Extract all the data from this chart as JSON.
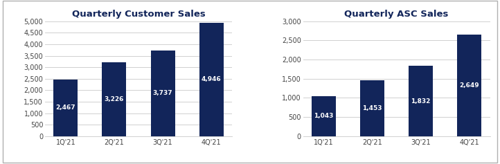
{
  "chart1_title": "Quarterly Customer Sales",
  "chart2_title": "Quarterly ASC Sales",
  "categories": [
    "1Q'21",
    "2Q'21",
    "3Q'21",
    "4Q'21"
  ],
  "values1": [
    2467,
    3226,
    3737,
    4946
  ],
  "values2": [
    1043,
    1453,
    1832,
    2649
  ],
  "bar_color": "#12255a",
  "label_color": "#ffffff",
  "ylim1": [
    0,
    5000
  ],
  "ylim2": [
    0,
    3000
  ],
  "yticks1": [
    0,
    500,
    1000,
    1500,
    2000,
    2500,
    3000,
    3500,
    4000,
    4500,
    5000
  ],
  "yticks2": [
    0,
    500,
    1000,
    1500,
    2000,
    2500,
    3000
  ],
  "bg_color": "#ffffff",
  "border_color": "#b0b0b0",
  "title_fontsize": 9.5,
  "label_fontsize": 6.5,
  "tick_fontsize": 7,
  "grid_color": "#d0d0d0",
  "title_color": "#12255a"
}
